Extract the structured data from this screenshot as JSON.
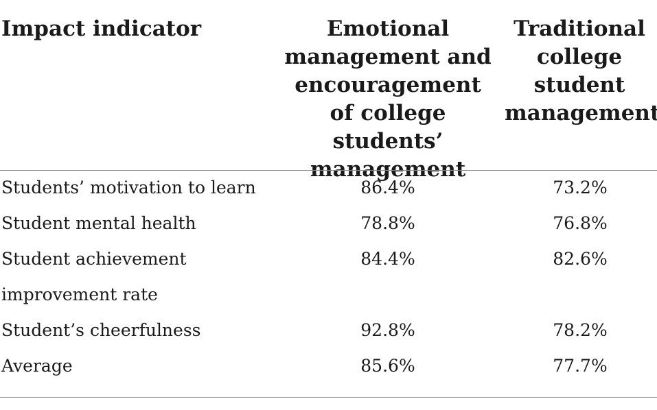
{
  "header": {
    "indicator": "Impact indicator",
    "emotional": "Emotional management and encouragement of college students’ management",
    "traditional": "Traditional college student management"
  },
  "rows": [
    {
      "label": "Students’ motivation to learn",
      "emotional": "86.4%",
      "traditional": "73.2%"
    },
    {
      "label": "Student mental health",
      "emotional": "78.8%",
      "traditional": "76.8%"
    },
    {
      "label": "Student achievement",
      "emotional": "84.4%",
      "traditional": "82.6%"
    },
    {
      "label": "improvement rate",
      "emotional": "",
      "traditional": ""
    },
    {
      "label": "Student’s cheerfulness",
      "emotional": "92.8%",
      "traditional": "78.2%"
    },
    {
      "label": "Average",
      "emotional": "85.6%",
      "traditional": "77.7%"
    }
  ]
}
